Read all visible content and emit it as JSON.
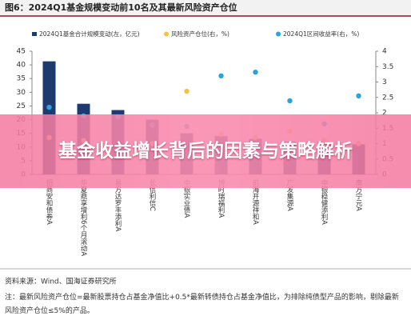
{
  "chart_data": {
    "type": "bar_scatter",
    "title": "图6：2024Q1基金规模变动前10名及其最新风险资产仓位",
    "categories": [
      "招商安和债券A",
      "华夏鼎享增利6个月滚动A",
      "易方达罗丰添利A",
      "长信利信C",
      "中银实业债A",
      "博时瑞福利A",
      "前海开源祥和A",
      "广发集源A",
      "中银稳健添利A",
      "南方宁元A"
    ],
    "series": [
      {
        "name": "2024Q1基金合计规模变动(左，亿元)",
        "color": "#1f3a6e",
        "axis": "y",
        "values": [
          41.3,
          25.8,
          23.5,
          20,
          15,
          14,
          13,
          12,
          12,
          11
        ]
      },
      {
        "name": "风险资产仓位(右，%)",
        "color": "#f5c242",
        "axis": "y2",
        "values": [
          1.2,
          1.1,
          0.9,
          1.0,
          2.7,
          1.3,
          1.2,
          1.4,
          1.1,
          1.0
        ]
      },
      {
        "name": "2024Q1区间收益率(右，%)",
        "color": "#2aa4e0",
        "axis": "y2",
        "values": [
          2.18,
          1.9,
          1.87,
          1.6,
          1.56,
          3.2,
          3.32,
          2.39,
          1.64,
          2.55
        ]
      }
    ],
    "ylim": [
      0,
      45
    ],
    "yticks": [
      0,
      5,
      10,
      15,
      20,
      25,
      30,
      35,
      40,
      45
    ],
    "y2lim": [
      0,
      4
    ],
    "y2ticks": [
      0,
      0.5,
      1,
      1.5,
      2,
      2.5,
      3,
      3.5,
      4
    ],
    "source": "资料来源：Wind、国海证券研究所",
    "note": "注：最新风险资产仓位=最新股票持仓占基金净值比+0.5*最新转债持仓占基金净值比，为排除纯债型产品的影响，剔除最新风险资产仓位≤5%的产品。",
    "banner": "基金收益增长背后的因素与策略解析"
  }
}
